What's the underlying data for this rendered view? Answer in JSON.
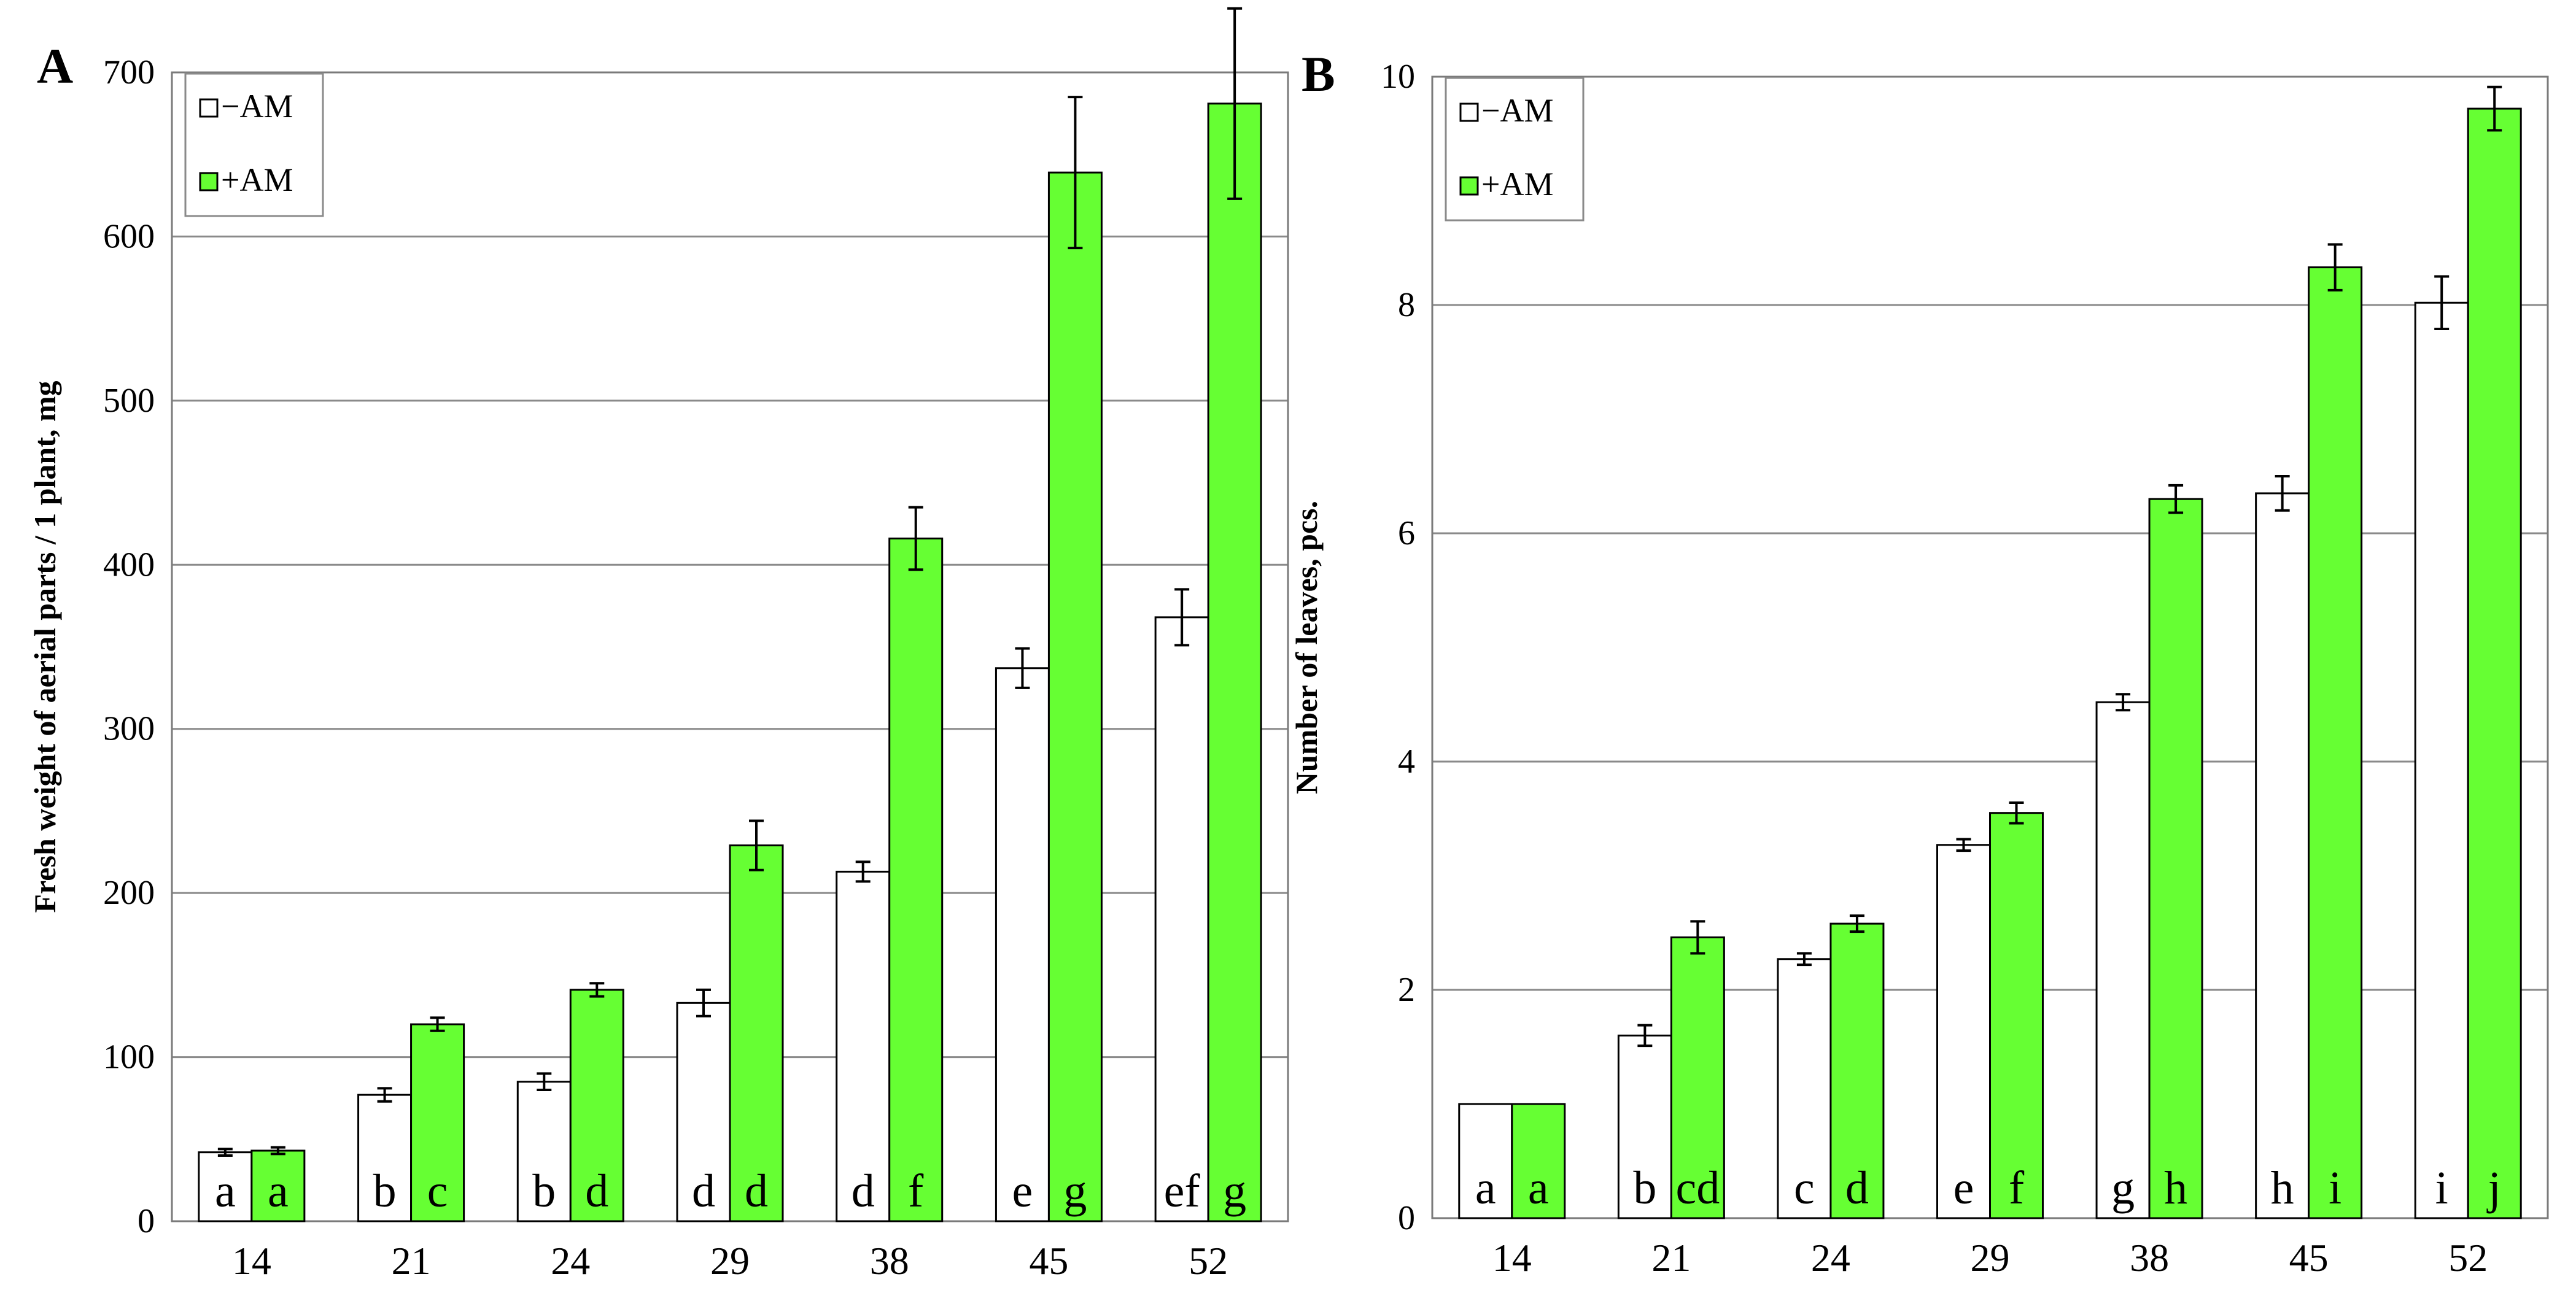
{
  "chart_data": [
    {
      "type": "bar",
      "panel_label": "A",
      "categories": [
        "14",
        "21",
        "24",
        "29",
        "38",
        "45",
        "52"
      ],
      "ylabel": "Fresh weight of aerial parts / 1 plant, mg",
      "ylim": [
        0,
        700
      ],
      "yticks": [
        "0",
        "100",
        "200",
        "300",
        "400",
        "500",
        "600",
        "700"
      ],
      "grid": true,
      "legend_position": "top-left",
      "series": [
        {
          "name": "−AM",
          "color": "#ffffff",
          "values": [
            42,
            77,
            85,
            133,
            213,
            337,
            368
          ],
          "errors": [
            2,
            4,
            5,
            8,
            6,
            12,
            17
          ],
          "letters": [
            "a",
            "b",
            "b",
            "d",
            "d",
            "e",
            "ef"
          ]
        },
        {
          "name": "+AM",
          "color": "#66ff33",
          "values": [
            43,
            120,
            141,
            229,
            416,
            639,
            681
          ],
          "errors": [
            2,
            4,
            4,
            15,
            19,
            46,
            58
          ],
          "letters": [
            "a",
            "c",
            "d",
            "d",
            "f",
            "g",
            "g"
          ]
        }
      ]
    },
    {
      "type": "bar",
      "panel_label": "B",
      "categories": [
        "14",
        "21",
        "24",
        "29",
        "38",
        "45",
        "52"
      ],
      "ylabel": "Number of leaves, pcs.",
      "ylim": [
        0,
        10
      ],
      "yticks": [
        "0",
        "2",
        "4",
        "6",
        "8",
        "10"
      ],
      "grid": true,
      "legend_position": "top-left",
      "series": [
        {
          "name": "−AM",
          "color": "#ffffff",
          "values": [
            1.0,
            1.6,
            2.27,
            3.27,
            4.52,
            6.35,
            8.02
          ],
          "errors": [
            0,
            0.09,
            0.05,
            0.05,
            0.07,
            0.15,
            0.23
          ],
          "letters": [
            "a",
            "b",
            "c",
            "e",
            "g",
            "h",
            "i"
          ]
        },
        {
          "name": "+AM",
          "color": "#66ff33",
          "values": [
            1.0,
            2.46,
            2.58,
            3.55,
            6.3,
            8.33,
            9.72
          ],
          "errors": [
            0,
            0.14,
            0.07,
            0.09,
            0.12,
            0.2,
            0.19
          ],
          "letters": [
            "a",
            "cd",
            "d",
            "f",
            "h",
            "i",
            "j"
          ]
        }
      ]
    }
  ]
}
